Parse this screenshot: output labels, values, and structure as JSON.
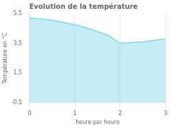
{
  "chart_data": {
    "type": "area",
    "title": "Evolution de la température",
    "xlabel": "heure par heure",
    "ylabel": "Température en °C",
    "x": [
      0,
      0.25,
      0.5,
      0.75,
      1.0,
      1.25,
      1.5,
      1.75,
      2.0,
      2.25,
      2.5,
      2.75,
      3.0
    ],
    "values": [
      5.2,
      5.15,
      5.05,
      4.9,
      4.75,
      4.55,
      4.3,
      4.0,
      3.5,
      3.55,
      3.6,
      3.7,
      3.8
    ],
    "color": "#7dd4e8",
    "xlim": [
      0,
      3
    ],
    "ylim": [
      -0.5,
      5.5
    ],
    "xticks": [
      0,
      1,
      2,
      3
    ],
    "yticks": [
      -0.5,
      1.5,
      3.5,
      5.5
    ],
    "grid": "x"
  }
}
